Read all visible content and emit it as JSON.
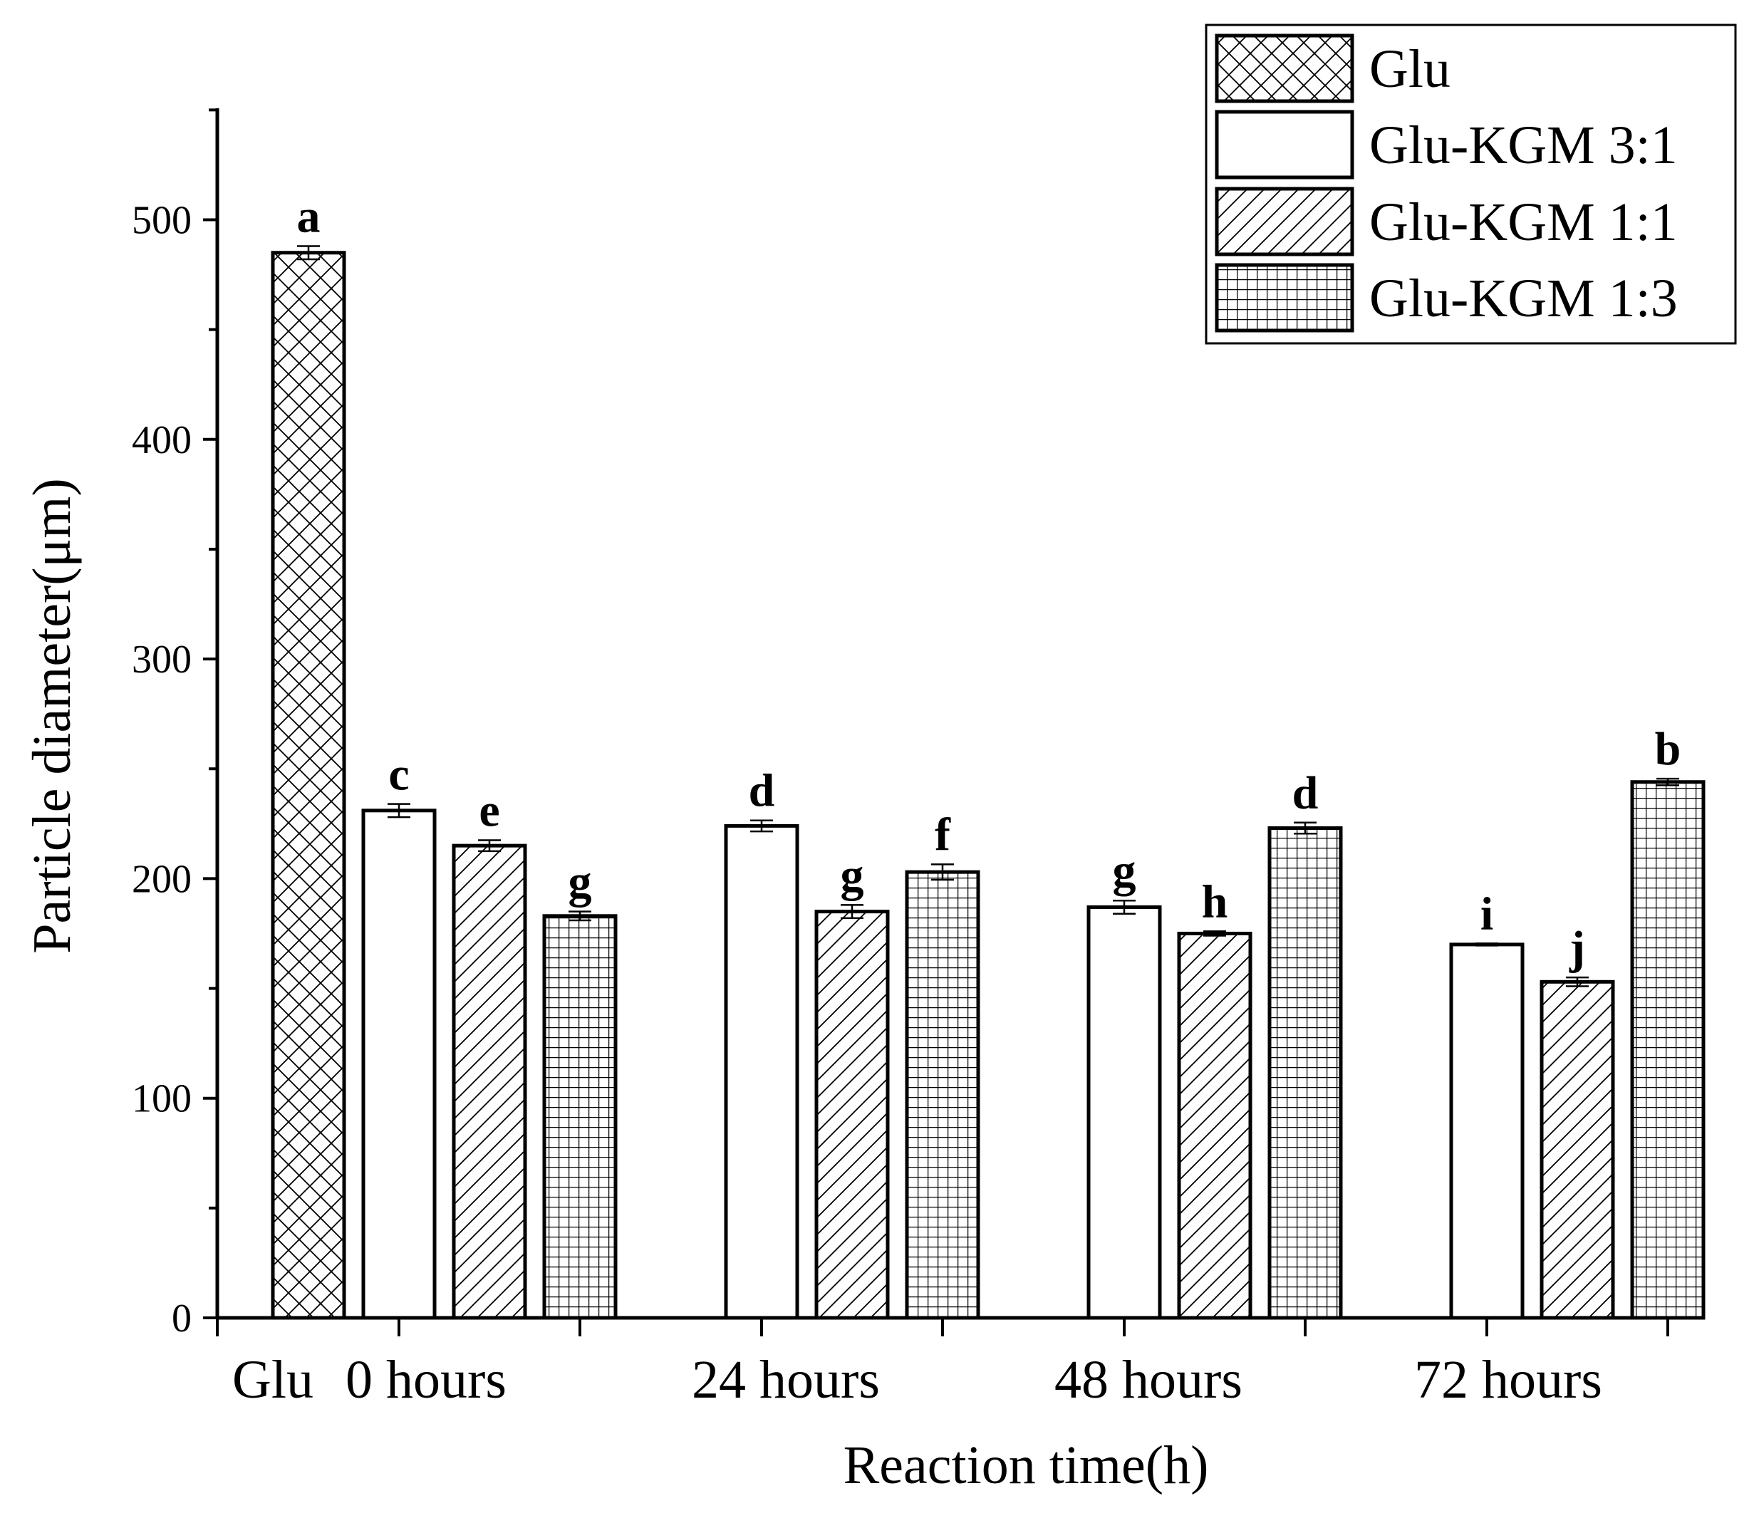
{
  "chart_data": {
    "type": "bar",
    "title": "",
    "xlabel": "Reaction time(h)",
    "ylabel": "Particle diameter(μm)",
    "ylim": [
      0,
      550
    ],
    "yticks": [
      0,
      100,
      200,
      300,
      400,
      500
    ],
    "grid": false,
    "legend_position": "top-right",
    "categories": [
      "Glu",
      "0 hours",
      "24 hours",
      "48 hours",
      "72 hours"
    ],
    "series": [
      {
        "name": "Glu",
        "pattern": "crosshatch",
        "points": [
          {
            "category": "Glu",
            "value": 485,
            "error": 3,
            "label": "a"
          }
        ]
      },
      {
        "name": "Glu-KGM 3:1",
        "pattern": "none",
        "points": [
          {
            "category": "0 hours",
            "value": 231,
            "error": 3,
            "label": "c"
          },
          {
            "category": "24 hours",
            "value": 224,
            "error": 2.5,
            "label": "d"
          },
          {
            "category": "48 hours",
            "value": 187,
            "error": 3,
            "label": "g"
          },
          {
            "category": "72 hours",
            "value": 170,
            "error": 0.5,
            "label": "i"
          }
        ]
      },
      {
        "name": "Glu-KGM 1:1",
        "pattern": "diagonal",
        "points": [
          {
            "category": "0 hours",
            "value": 215,
            "error": 2.5,
            "label": "e"
          },
          {
            "category": "24 hours",
            "value": 185,
            "error": 3,
            "label": "g"
          },
          {
            "category": "48 hours",
            "value": 175,
            "error": 1,
            "label": "h"
          },
          {
            "category": "72 hours",
            "value": 153,
            "error": 2,
            "label": "j"
          }
        ]
      },
      {
        "name": "Glu-KGM 1:3",
        "pattern": "grid",
        "points": [
          {
            "category": "0 hours",
            "value": 183,
            "error": 2,
            "label": "g"
          },
          {
            "category": "24 hours",
            "value": 203,
            "error": 3.5,
            "label": "f"
          },
          {
            "category": "48 hours",
            "value": 223,
            "error": 2.5,
            "label": "d"
          },
          {
            "category": "72 hours",
            "value": 244,
            "error": 1.5,
            "label": "b"
          }
        ]
      }
    ]
  }
}
